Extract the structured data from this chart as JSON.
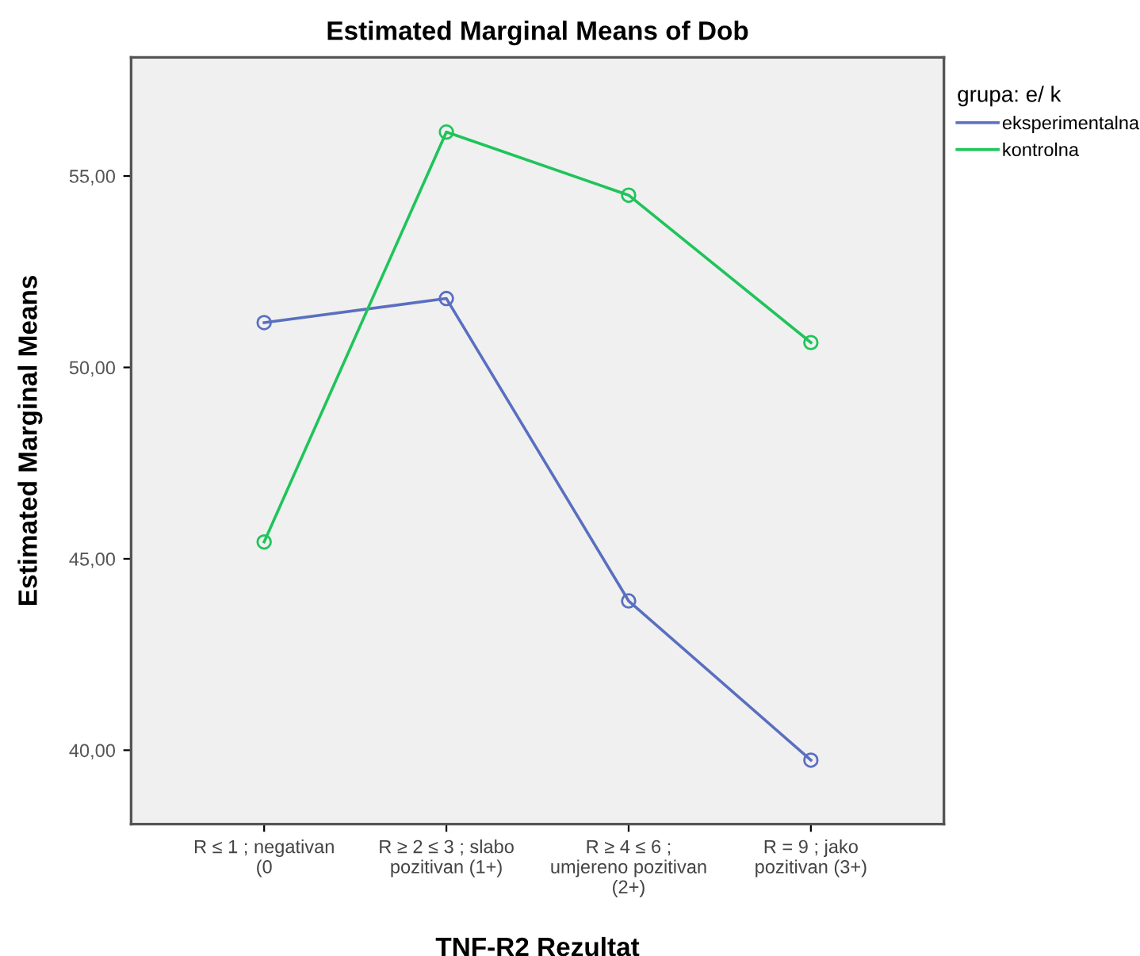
{
  "chart_data": {
    "type": "line",
    "title": "Estimated Marginal Means of Dob",
    "xlabel": "TNF-R2 Rezultat",
    "ylabel": "Estimated Marginal Means",
    "legend_title": "grupa: e/ k",
    "categories": [
      "R ≤ 1 ; negativan\n(0",
      "R ≥ 2 ≤ 3 ; slabo\npozitivan (1+)",
      "R ≥ 4 ≤ 6 ;\numjereno pozitivan\n(2+)",
      "R = 9 ; jako\npozitivan (3+)"
    ],
    "series": [
      {
        "name": "eksperimentalna",
        "color": "#5a6fc0",
        "values": [
          51.17,
          51.8,
          43.9,
          39.74
        ]
      },
      {
        "name": "kontrolna",
        "color": "#1fc45a",
        "values": [
          45.44,
          56.15,
          54.5,
          50.65
        ]
      }
    ],
    "ylim": [
      38.07,
      58.1
    ],
    "yticks": [
      {
        "value": 40,
        "label": "40,00"
      },
      {
        "value": 45,
        "label": "45,00"
      },
      {
        "value": 50,
        "label": "50,00"
      },
      {
        "value": 55,
        "label": "55,00"
      }
    ],
    "marker": "circle",
    "line_style": "solid",
    "legend": "top right",
    "grid": false
  }
}
